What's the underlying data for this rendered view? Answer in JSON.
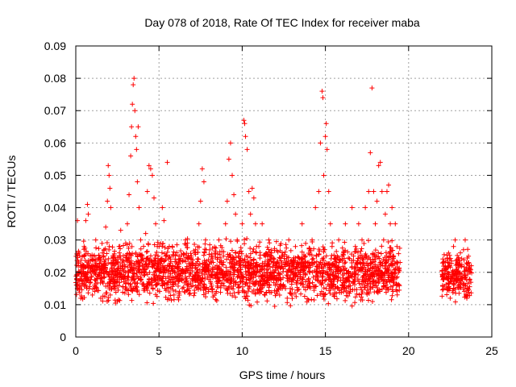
{
  "chart_data": {
    "type": "scatter",
    "title": "Day 078 of 2018, Rate Of TEC Index for receiver maba",
    "xlabel": "GPS time / hours",
    "ylabel": "ROTI / TECUs",
    "xlim": [
      0,
      25
    ],
    "ylim": [
      0,
      0.09
    ],
    "x_ticks": [
      0,
      5,
      10,
      15,
      20,
      25
    ],
    "x_tick_labels": [
      "0",
      "5",
      "10",
      "15",
      "20",
      "25"
    ],
    "y_ticks": [
      0,
      0.01,
      0.02,
      0.03,
      0.04,
      0.05,
      0.06,
      0.07,
      0.08,
      0.09
    ],
    "y_tick_labels": [
      "0",
      "0.01",
      "0.02",
      "0.03",
      "0.04",
      "0.05",
      "0.06",
      "0.07",
      "0.08",
      "0.09"
    ],
    "grid": true,
    "marker": "+",
    "color": "#ff0000",
    "series": [
      {
        "name": "ROTI",
        "points": [
          [
            0.05,
            0.018
          ],
          [
            0.1,
            0.036
          ],
          [
            0.2,
            0.026
          ],
          [
            0.3,
            0.012
          ],
          [
            0.4,
            0.022
          ],
          [
            0.5,
            0.028
          ],
          [
            0.6,
            0.036
          ],
          [
            0.7,
            0.041
          ],
          [
            0.75,
            0.038
          ],
          [
            0.8,
            0.015
          ],
          [
            0.9,
            0.02
          ],
          [
            1.0,
            0.013
          ],
          [
            1.1,
            0.025
          ],
          [
            1.2,
            0.03
          ],
          [
            1.3,
            0.018
          ],
          [
            1.4,
            0.022
          ],
          [
            1.5,
            0.012
          ],
          [
            1.6,
            0.017
          ],
          [
            1.7,
            0.027
          ],
          [
            1.8,
            0.034
          ],
          [
            1.9,
            0.042
          ],
          [
            1.95,
            0.053
          ],
          [
            2.0,
            0.05
          ],
          [
            2.05,
            0.046
          ],
          [
            2.1,
            0.04
          ],
          [
            2.2,
            0.02
          ],
          [
            2.3,
            0.015
          ],
          [
            2.4,
            0.024
          ],
          [
            2.5,
            0.011
          ],
          [
            2.6,
            0.028
          ],
          [
            2.7,
            0.033
          ],
          [
            2.8,
            0.021
          ],
          [
            2.9,
            0.018
          ],
          [
            3.0,
            0.029
          ],
          [
            3.1,
            0.035
          ],
          [
            3.2,
            0.044
          ],
          [
            3.3,
            0.056
          ],
          [
            3.35,
            0.065
          ],
          [
            3.4,
            0.072
          ],
          [
            3.45,
            0.078
          ],
          [
            3.5,
            0.08
          ],
          [
            3.55,
            0.07
          ],
          [
            3.6,
            0.062
          ],
          [
            3.65,
            0.058
          ],
          [
            3.7,
            0.048
          ],
          [
            3.75,
            0.065
          ],
          [
            3.8,
            0.04
          ],
          [
            3.9,
            0.03
          ],
          [
            4.0,
            0.025
          ],
          [
            4.1,
            0.015
          ],
          [
            4.2,
            0.032
          ],
          [
            4.3,
            0.045
          ],
          [
            4.4,
            0.053
          ],
          [
            4.5,
            0.052
          ],
          [
            4.6,
            0.05
          ],
          [
            4.7,
            0.043
          ],
          [
            4.8,
            0.035
          ],
          [
            4.9,
            0.028
          ],
          [
            5.0,
            0.019
          ],
          [
            5.1,
            0.024
          ],
          [
            5.2,
            0.04
          ],
          [
            5.3,
            0.036
          ],
          [
            5.4,
            0.025
          ],
          [
            5.5,
            0.054
          ],
          [
            5.6,
            0.022
          ],
          [
            5.7,
            0.017
          ],
          [
            5.8,
            0.028
          ],
          [
            5.9,
            0.013
          ],
          [
            6.0,
            0.02
          ],
          [
            6.2,
            0.025
          ],
          [
            6.4,
            0.018
          ],
          [
            6.6,
            0.03
          ],
          [
            6.8,
            0.015
          ],
          [
            7.0,
            0.022
          ],
          [
            7.2,
            0.027
          ],
          [
            7.4,
            0.035
          ],
          [
            7.5,
            0.042
          ],
          [
            7.6,
            0.052
          ],
          [
            7.7,
            0.048
          ],
          [
            7.8,
            0.03
          ],
          [
            8.0,
            0.02
          ],
          [
            8.2,
            0.014
          ],
          [
            8.4,
            0.026
          ],
          [
            8.6,
            0.03
          ],
          [
            8.8,
            0.02
          ],
          [
            9.0,
            0.035
          ],
          [
            9.1,
            0.042
          ],
          [
            9.2,
            0.055
          ],
          [
            9.3,
            0.06
          ],
          [
            9.4,
            0.05
          ],
          [
            9.5,
            0.044
          ],
          [
            9.6,
            0.038
          ],
          [
            9.7,
            0.03
          ],
          [
            9.8,
            0.025
          ],
          [
            9.9,
            0.02
          ],
          [
            10.0,
            0.035
          ],
          [
            10.1,
            0.067
          ],
          [
            10.15,
            0.066
          ],
          [
            10.2,
            0.062
          ],
          [
            10.3,
            0.058
          ],
          [
            10.4,
            0.045
          ],
          [
            10.5,
            0.038
          ],
          [
            10.6,
            0.046
          ],
          [
            10.7,
            0.043
          ],
          [
            10.8,
            0.035
          ],
          [
            11.0,
            0.028
          ],
          [
            11.2,
            0.035
          ],
          [
            11.4,
            0.025
          ],
          [
            11.6,
            0.03
          ],
          [
            11.8,
            0.02
          ],
          [
            12.0,
            0.022
          ],
          [
            12.2,
            0.018
          ],
          [
            12.4,
            0.025
          ],
          [
            12.6,
            0.015
          ],
          [
            12.8,
            0.03
          ],
          [
            13.0,
            0.022
          ],
          [
            13.2,
            0.028
          ],
          [
            13.4,
            0.02
          ],
          [
            13.6,
            0.035
          ],
          [
            13.8,
            0.025
          ],
          [
            14.0,
            0.018
          ],
          [
            14.2,
            0.03
          ],
          [
            14.4,
            0.04
          ],
          [
            14.6,
            0.045
          ],
          [
            14.7,
            0.06
          ],
          [
            14.8,
            0.076
          ],
          [
            14.85,
            0.074
          ],
          [
            14.9,
            0.05
          ],
          [
            15.0,
            0.062
          ],
          [
            15.05,
            0.066
          ],
          [
            15.1,
            0.058
          ],
          [
            15.2,
            0.045
          ],
          [
            15.3,
            0.035
          ],
          [
            15.4,
            0.028
          ],
          [
            15.6,
            0.022
          ],
          [
            15.8,
            0.03
          ],
          [
            16.0,
            0.025
          ],
          [
            16.2,
            0.035
          ],
          [
            16.4,
            0.02
          ],
          [
            16.6,
            0.04
          ],
          [
            16.8,
            0.028
          ],
          [
            17.0,
            0.035
          ],
          [
            17.2,
            0.03
          ],
          [
            17.4,
            0.04
          ],
          [
            17.6,
            0.045
          ],
          [
            17.7,
            0.057
          ],
          [
            17.8,
            0.077
          ],
          [
            17.9,
            0.045
          ],
          [
            18.0,
            0.035
          ],
          [
            18.1,
            0.042
          ],
          [
            18.2,
            0.053
          ],
          [
            18.3,
            0.054
          ],
          [
            18.4,
            0.045
          ],
          [
            18.5,
            0.03
          ],
          [
            18.6,
            0.038
          ],
          [
            18.7,
            0.045
          ],
          [
            18.8,
            0.047
          ],
          [
            18.9,
            0.035
          ],
          [
            19.0,
            0.04
          ],
          [
            19.1,
            0.025
          ],
          [
            19.2,
            0.035
          ],
          [
            19.3,
            0.028
          ],
          [
            19.4,
            0.02
          ],
          [
            22.1,
            0.018
          ],
          [
            22.2,
            0.022
          ],
          [
            22.3,
            0.015
          ],
          [
            22.4,
            0.026
          ],
          [
            22.5,
            0.012
          ],
          [
            22.6,
            0.02
          ],
          [
            22.7,
            0.028
          ],
          [
            22.8,
            0.03
          ],
          [
            22.9,
            0.024
          ],
          [
            23.0,
            0.016
          ],
          [
            23.1,
            0.022
          ],
          [
            23.2,
            0.018
          ],
          [
            23.3,
            0.027
          ],
          [
            23.4,
            0.03
          ],
          [
            23.5,
            0.012
          ],
          [
            23.6,
            0.025
          ],
          [
            23.7,
            0.02
          ]
        ],
        "band_segments": [
          {
            "x_start": 0.0,
            "x_end": 19.5,
            "y_low": 0.008,
            "y_high": 0.032
          },
          {
            "x_start": 22.0,
            "x_end": 23.8,
            "y_low": 0.009,
            "y_high": 0.029
          }
        ]
      }
    ]
  }
}
